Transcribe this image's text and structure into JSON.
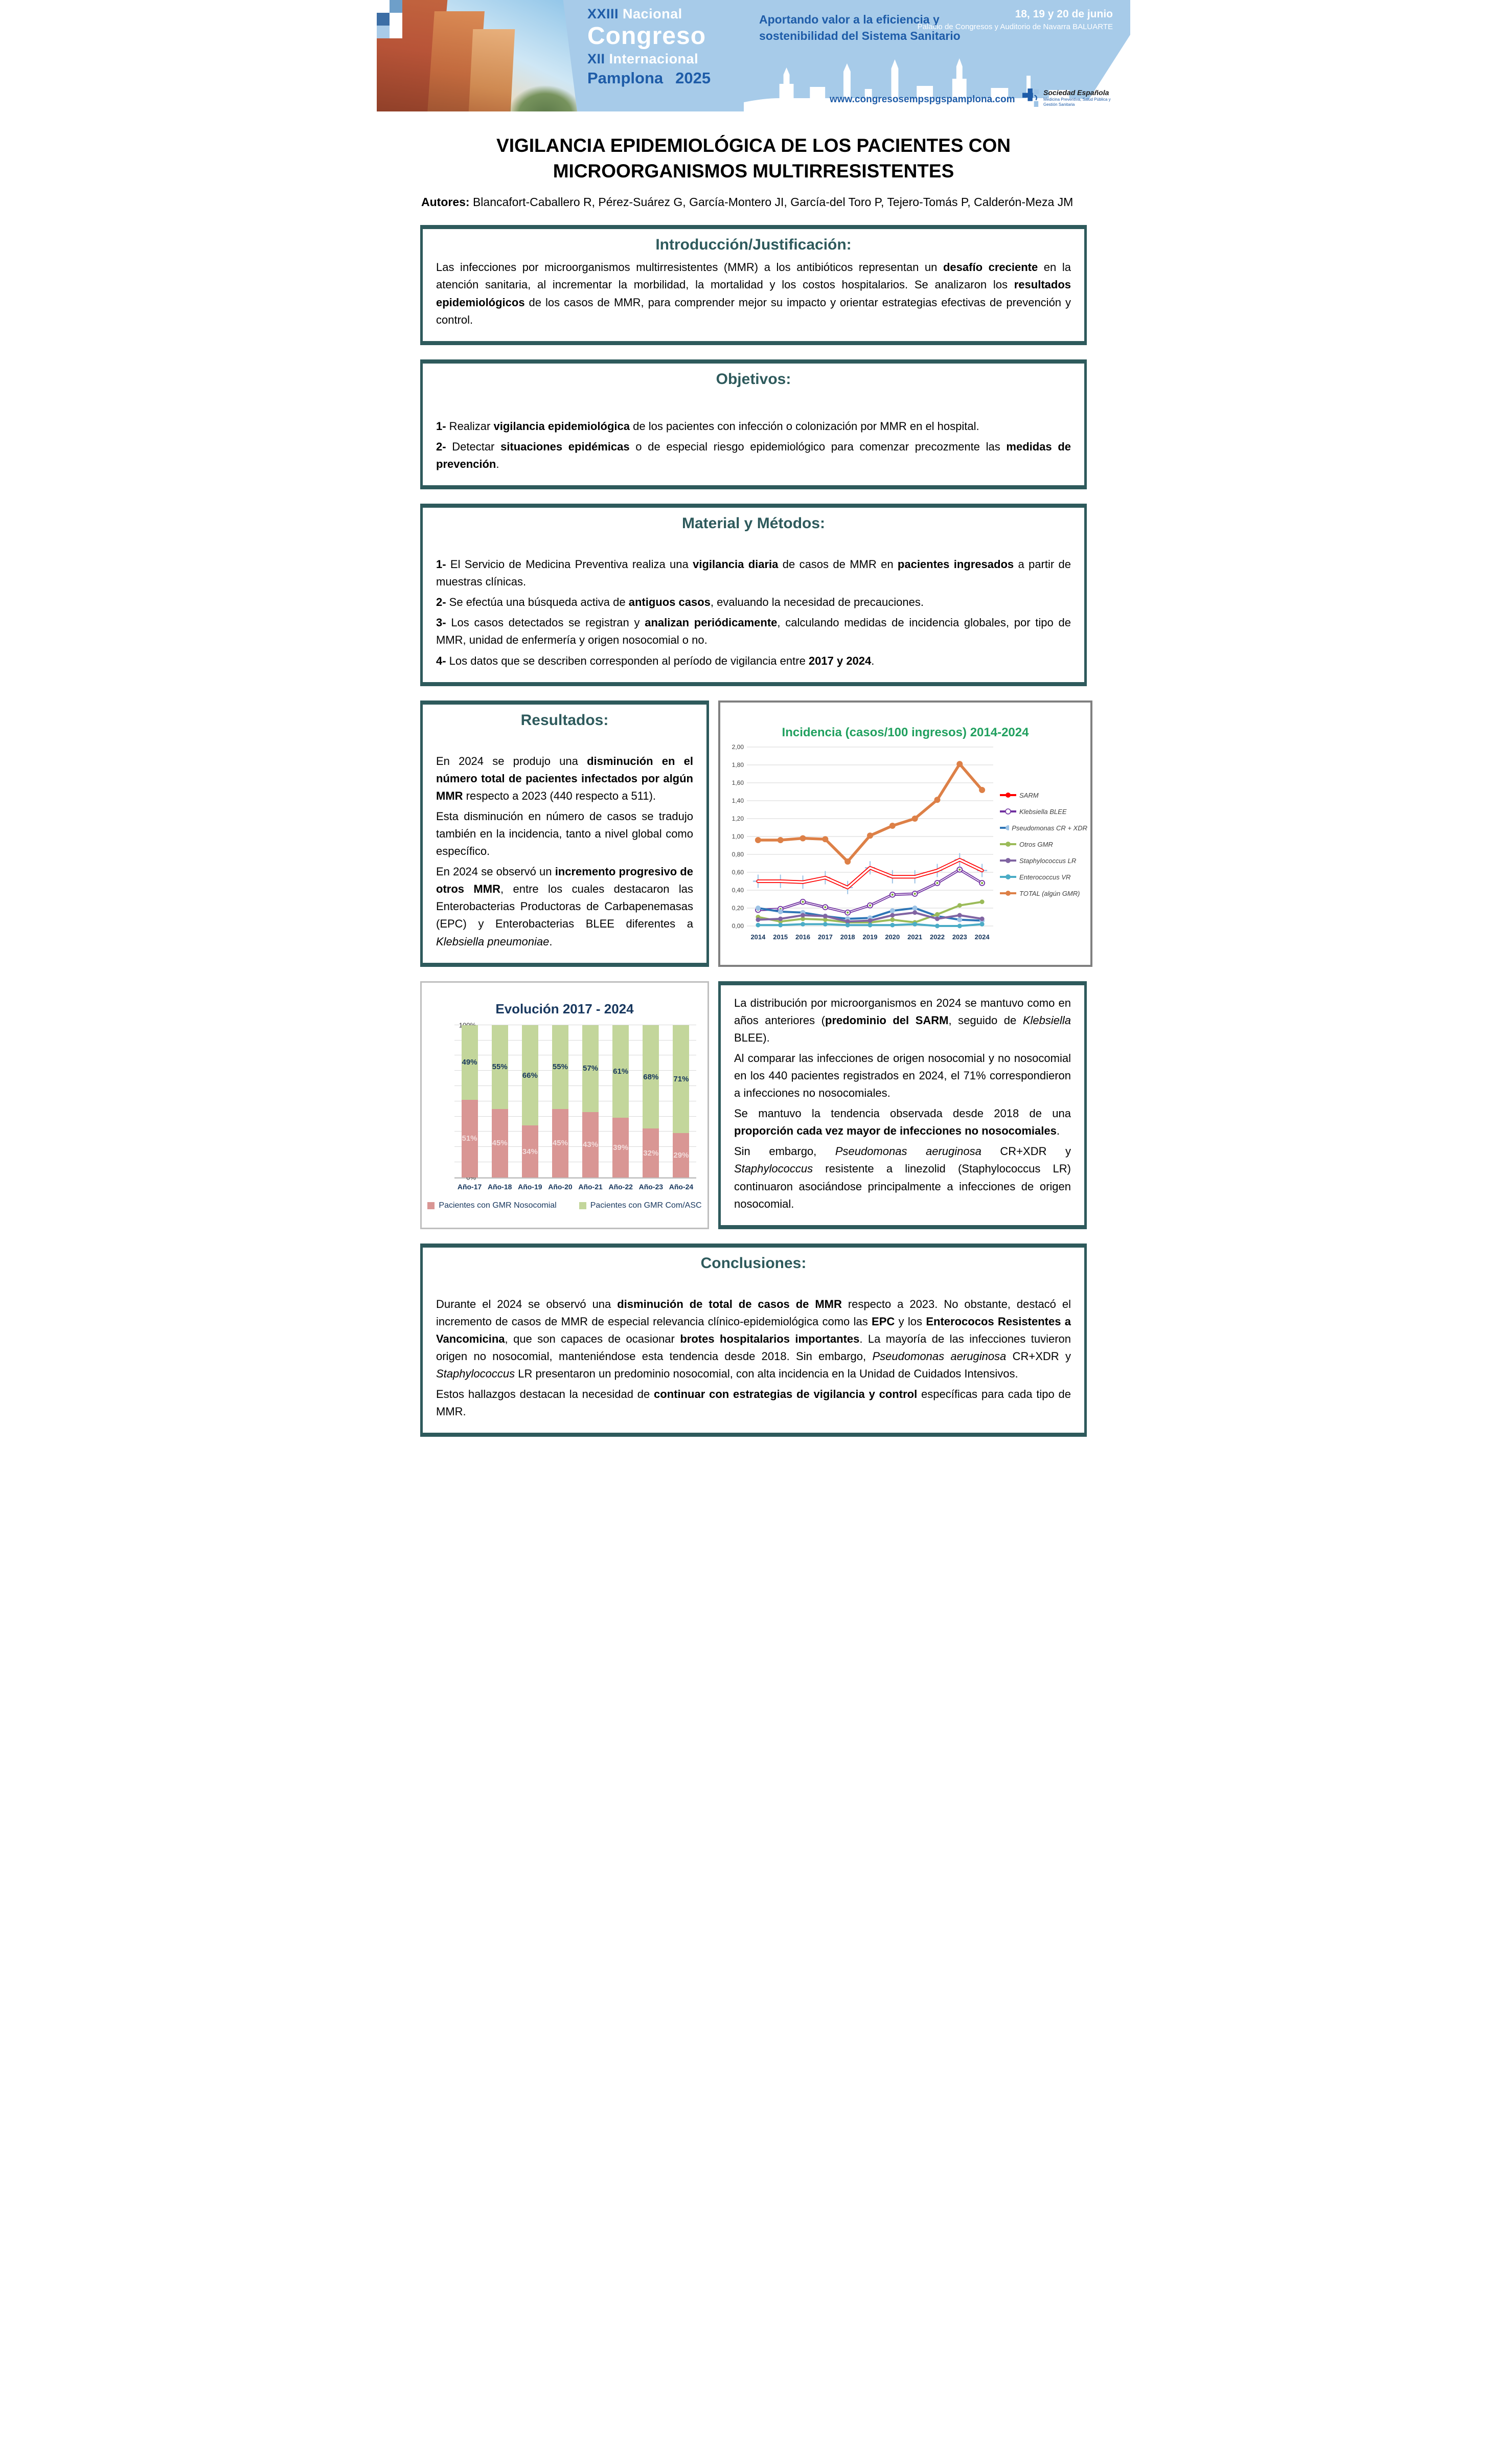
{
  "header": {
    "wordmark": {
      "line1_roman": "XXIII",
      "line1_word": "Nacional",
      "line2": "Congreso",
      "line3_roman": "XII",
      "line3_word": "Internacional",
      "city": "Pamplona",
      "year": "2025"
    },
    "tagline_line1": "Aportando valor a la eficiencia y",
    "tagline_line2": "sostenibilidad del Sistema Sanitario",
    "dates": "18, 19 y 20 de junio",
    "venue": "Palacio de Congresos y Auditorio de Navarra BALUARTE",
    "website": "www.congresosempspgspamplona.com",
    "society_name": "Sociedad Española",
    "society_subtitle": "Medicina Preventiva, Salud Pública y Gestión Sanitaria"
  },
  "poster": {
    "title_line1": "VIGILANCIA EPIDEMIOLÓGICA DE LOS PACIENTES CON",
    "title_line2": "MICROORGANISMOS MULTIRRESISTENTES",
    "authors_label": "Autores:",
    "authors": " Blancafort-Caballero R, Pérez-Suárez G, García-Montero JI, García-del Toro P, Tejero-Tomás P, Calderón-Meza JM"
  },
  "sections": {
    "introduccion": {
      "heading": "Introducción/Justificación:",
      "paragraph": [
        {
          "t": "Las infecciones por microorganismos multirresistentes (MMR) a los antibióticos representan un "
        },
        {
          "t": "desafío creciente",
          "b": true
        },
        {
          "t": " en la atención sanitaria, al incrementar la morbilidad, la mortalidad y los costos hospitalarios. Se analizaron los "
        },
        {
          "t": "resultados epidemiológicos",
          "b": true
        },
        {
          "t": " de los casos de MMR, para comprender mejor su impacto y orientar estrategias efectivas de prevención y control."
        }
      ]
    },
    "objetivos": {
      "heading": "Objetivos:",
      "items": [
        [
          {
            "t": "1-",
            "b": true
          },
          {
            "t": " Realizar "
          },
          {
            "t": "vigilancia epidemiológica",
            "b": true
          },
          {
            "t": " de los pacientes con infección o colonización por MMR en el hospital."
          }
        ],
        [
          {
            "t": "2-",
            "b": true
          },
          {
            "t": " Detectar "
          },
          {
            "t": "situaciones epidémicas",
            "b": true
          },
          {
            "t": " o de especial riesgo epidemiológico para comenzar precozmente las "
          },
          {
            "t": "medidas de prevención",
            "b": true
          },
          {
            "t": "."
          }
        ]
      ]
    },
    "material": {
      "heading": "Material y Métodos:",
      "items": [
        [
          {
            "t": "1-",
            "b": true
          },
          {
            "t": " El Servicio de Medicina Preventiva realiza una "
          },
          {
            "t": "vigilancia diaria",
            "b": true
          },
          {
            "t": " de casos de MMR en "
          },
          {
            "t": "pacientes ingresados",
            "b": true
          },
          {
            "t": " a partir de muestras clínicas."
          }
        ],
        [
          {
            "t": "2-",
            "b": true
          },
          {
            "t": " Se efectúa una búsqueda activa de "
          },
          {
            "t": "antiguos casos",
            "b": true
          },
          {
            "t": ", evaluando la necesidad de precauciones."
          }
        ],
        [
          {
            "t": "3-",
            "b": true
          },
          {
            "t": " Los casos detectados se registran y "
          },
          {
            "t": "analizan periódicamente",
            "b": true
          },
          {
            "t": ", calculando medidas de incidencia globales, por tipo de MMR, unidad de enfermería y origen nosocomial o no."
          }
        ],
        [
          {
            "t": "4-",
            "b": true
          },
          {
            "t": " Los datos que se describen corresponden al período de vigilancia entre "
          },
          {
            "t": "2017 y 2024",
            "b": true
          },
          {
            "t": "."
          }
        ]
      ]
    },
    "resultados": {
      "heading": "Resultados:",
      "paragraphs": [
        [
          {
            "t": "En 2024 se produjo una "
          },
          {
            "t": "disminución en el número total de pacientes infectados por algún MMR",
            "b": true
          },
          {
            "t": " respecto a 2023 (440 respecto a 511)."
          }
        ],
        [
          {
            "t": "Esta disminución en número de casos se tradujo también en la incidencia, tanto a nivel global como específico."
          }
        ],
        [
          {
            "t": "En 2024 se observó un "
          },
          {
            "t": "incremento progresivo de otros MMR",
            "b": true
          },
          {
            "t": ", entre los cuales destacaron las Enterobacterias Productoras de Carbapenemasas (EPC) y Enterobacterias BLEE diferentes a "
          },
          {
            "t": "Klebsiella pneumoniae",
            "i": true
          },
          {
            "t": "."
          }
        ]
      ]
    },
    "distribucion": {
      "paragraphs": [
        [
          {
            "t": "La distribución por microorganismos en 2024 se mantuvo como en años anteriores ("
          },
          {
            "t": "predominio del SARM",
            "b": true
          },
          {
            "t": ", seguido de "
          },
          {
            "t": "Klebsiella",
            "i": true
          },
          {
            "t": " BLEE)."
          }
        ],
        [
          {
            "t": "Al comparar las infecciones de origen nosocomial y no nosocomial en los 440 pacientes registrados en 2024, el 71% correspondieron a infecciones no nosocomiales."
          }
        ],
        [
          {
            "t": "Se mantuvo la tendencia observada desde 2018 de una "
          },
          {
            "t": "proporción cada vez mayor de infecciones no nosocomiales",
            "b": true
          },
          {
            "t": "."
          }
        ],
        [
          {
            "t": "Sin embargo, "
          },
          {
            "t": "Pseudomonas aeruginosa",
            "i": true
          },
          {
            "t": " CR+XDR y "
          },
          {
            "t": "Staphylococcus",
            "i": true
          },
          {
            "t": " resistente a linezolid (Staphylococcus LR) continuaron asociándose principalmente a infecciones de origen nosocomial."
          }
        ]
      ]
    },
    "conclusiones": {
      "heading": "Conclusiones:",
      "paragraphs": [
        [
          {
            "t": "Durante el 2024 se observó una "
          },
          {
            "t": "disminución de total de casos de MMR",
            "b": true
          },
          {
            "t": " respecto a 2023. No obstante, destacó el incremento de casos de MMR de especial relevancia clínico-epidemiológica como las "
          },
          {
            "t": "EPC",
            "b": true
          },
          {
            "t": " y los "
          },
          {
            "t": "Enterococos Resistentes a Vancomicina",
            "b": true
          },
          {
            "t": ", que son capaces de ocasionar "
          },
          {
            "t": "brotes hospitalarios importantes",
            "b": true
          },
          {
            "t": ". La mayoría de las infecciones tuvieron origen no nosocomial, manteniéndose esta tendencia desde 2018. Sin embargo, "
          },
          {
            "t": "Pseudomonas aeruginosa",
            "i": true
          },
          {
            "t": " CR+XDR y "
          },
          {
            "t": "Staphylococcus",
            "i": true
          },
          {
            "t": " LR presentaron un predominio nosocomial, con alta incidencia en la Unidad de Cuidados Intensivos."
          }
        ],
        [
          {
            "t": "Estos hallazgos destacan la necesidad de "
          },
          {
            "t": "continuar con estrategias de vigilancia y control",
            "b": true
          },
          {
            "t": " específicas para cada tipo de MMR."
          }
        ]
      ]
    }
  },
  "chart_data": [
    {
      "type": "line",
      "title": "Incidencia (casos/100 ingresos) 2014-2024",
      "title_color": "#21A05F",
      "x": [
        2014,
        2015,
        2016,
        2017,
        2018,
        2019,
        2020,
        2021,
        2022,
        2023,
        2024
      ],
      "ylim": [
        0,
        2.0
      ],
      "ytick_step": 0.2,
      "decimal_separator": ",",
      "grid": true,
      "legend_position": "right",
      "xlabel": "",
      "ylabel": "",
      "series": [
        {
          "name": "SARM",
          "color": "#FF0000",
          "width": 7,
          "band": true,
          "errorbars": true,
          "marker": null,
          "marker_r": 0,
          "values": [
            0.5,
            0.5,
            0.49,
            0.54,
            0.43,
            0.65,
            0.55,
            0.55,
            0.62,
            0.74,
            0.62
          ]
        },
        {
          "name": "Klebsiella BLEE",
          "color": "#7030A0",
          "width": 5,
          "band": true,
          "marker": "#ffffff",
          "marker_stroke": "#7030A0",
          "marker_core": "#76A832",
          "marker_r": 5,
          "values": [
            0.18,
            0.19,
            0.27,
            0.21,
            0.15,
            0.23,
            0.35,
            0.36,
            0.48,
            0.63,
            0.48
          ]
        },
        {
          "name": "Pseudomonas CR + XDR",
          "color": "#2E75B6",
          "width": 4,
          "marker": "#9DC3E6",
          "marker_r": 5,
          "values": [
            0.2,
            0.16,
            0.15,
            0.11,
            0.08,
            0.09,
            0.17,
            0.2,
            0.11,
            0.07,
            0.06
          ]
        },
        {
          "name": "Otros GMR",
          "color": "#9BBB59",
          "width": 4,
          "marker": "#9BBB59",
          "marker_r": 4.5,
          "values": [
            0.1,
            0.05,
            0.08,
            0.07,
            0.04,
            0.04,
            0.07,
            0.04,
            0.13,
            0.23,
            0.27
          ]
        },
        {
          "name": "Staphylococcus LR",
          "color": "#8064A2",
          "width": 4,
          "marker": "#8064A2",
          "marker_r": 4.5,
          "values": [
            0.07,
            0.08,
            0.12,
            0.11,
            0.05,
            0.06,
            0.12,
            0.15,
            0.08,
            0.12,
            0.08
          ]
        },
        {
          "name": "Enterococcus VR",
          "color": "#4BACC6",
          "width": 4,
          "marker": "#4BACC6",
          "marker_r": 4.5,
          "values": [
            0.01,
            0.01,
            0.02,
            0.02,
            0.01,
            0.01,
            0.01,
            0.02,
            0.0,
            0.0,
            0.02
          ]
        },
        {
          "name": "TOTAL (algún GMR)",
          "color": "#DD8047",
          "width": 5.5,
          "marker": "#DD8047",
          "marker_r": 6,
          "values": [
            0.96,
            0.96,
            0.98,
            0.97,
            0.72,
            1.01,
            1.12,
            1.2,
            1.41,
            1.81,
            1.52
          ]
        }
      ]
    },
    {
      "type": "bar",
      "stacked": true,
      "title": "Evolución 2017 - 2024",
      "title_color": "#17375E",
      "categories": [
        "Año-17",
        "Año-18",
        "Año-19",
        "Año-20",
        "Año-21",
        "Año-22",
        "Año-23",
        "Año-24"
      ],
      "ylim": [
        0,
        100
      ],
      "ytick_step": 10,
      "ytick_suffix": "%",
      "grid": true,
      "legend_position": "bottom",
      "series": [
        {
          "name": "Pacientes con GMR Nosocomial",
          "color": "#D99694",
          "label_color": "#F2DCDB",
          "values": [
            51,
            45,
            34,
            45,
            43,
            39,
            32,
            29
          ]
        },
        {
          "name": "Pacientes con GMR Com/ASC",
          "color": "#C3D69B",
          "label_color": "#17375E",
          "values": [
            49,
            55,
            66,
            55,
            57,
            61,
            68,
            71
          ]
        }
      ]
    }
  ]
}
